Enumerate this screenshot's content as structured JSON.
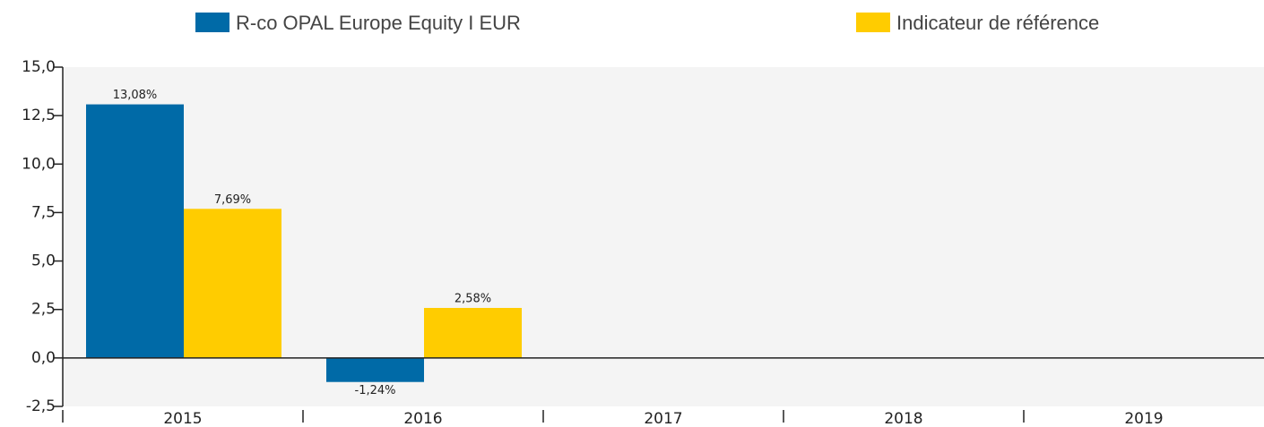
{
  "chart_data": {
    "type": "bar",
    "categories": [
      "2015",
      "2016",
      "2017",
      "2018",
      "2019"
    ],
    "series": [
      {
        "name": "R-co OPAL Europe Equity I EUR",
        "color": "#006aa7",
        "values": [
          13.08,
          -1.24,
          null,
          null,
          null
        ],
        "value_labels": [
          "13,08%",
          "-1,24%",
          null,
          null,
          null
        ]
      },
      {
        "name": "Indicateur de référence",
        "color": "#ffcc00",
        "values": [
          7.69,
          2.58,
          null,
          null,
          null
        ],
        "value_labels": [
          "7,69%",
          "2,58%",
          null,
          null,
          null
        ]
      }
    ],
    "ylim": [
      -2.5,
      15
    ],
    "yticks": [
      {
        "value": -2.5,
        "label": "-2,5"
      },
      {
        "value": 0,
        "label": "0,0"
      },
      {
        "value": 2.5,
        "label": "2,5"
      },
      {
        "value": 5,
        "label": "5,0"
      },
      {
        "value": 7.5,
        "label": "7,5"
      },
      {
        "value": 10,
        "label": "10,0"
      },
      {
        "value": 12.5,
        "label": "12,5"
      },
      {
        "value": 15,
        "label": "15,0"
      }
    ],
    "grid": false
  }
}
